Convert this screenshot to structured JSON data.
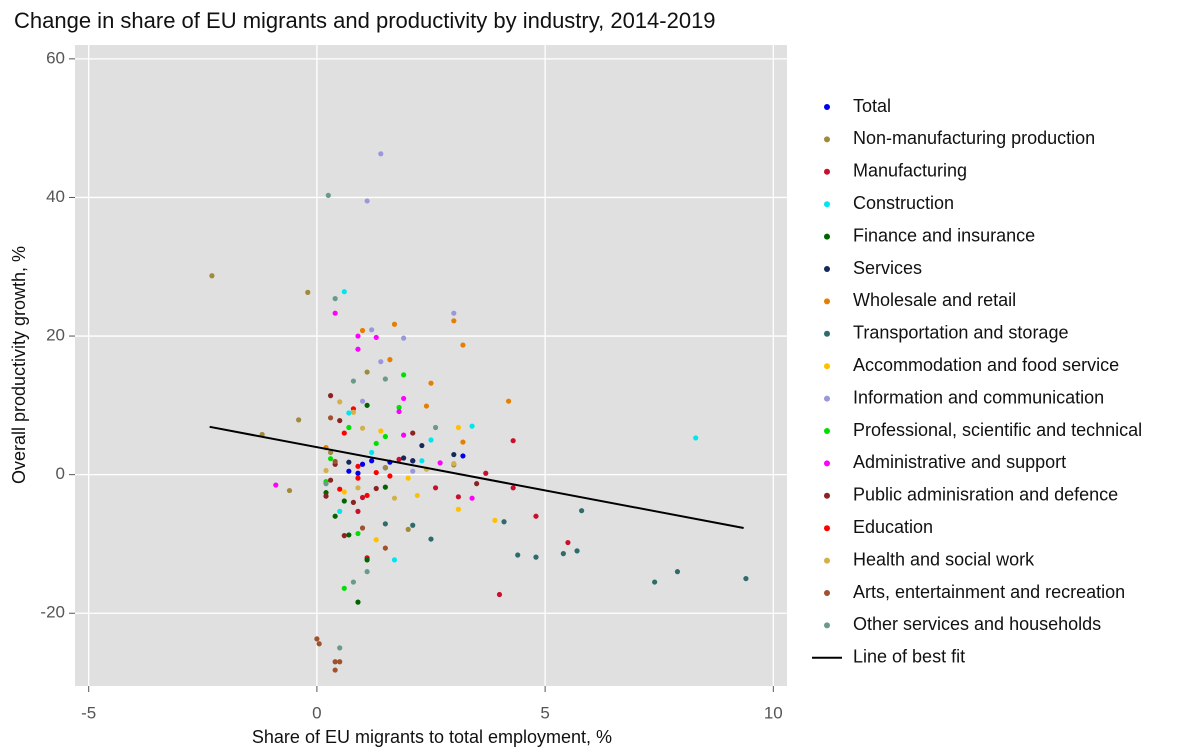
{
  "chart_data": {
    "type": "scatter",
    "title": "Change in share of EU migrants and productivity by industry, 2014-2019",
    "x_label": "Share of EU migrants to total employment, %",
    "y_label": "Overall productivity growth, %",
    "xlim": [
      -5.3,
      10.3
    ],
    "ylim": [
      -30.5,
      62
    ],
    "xticks": [
      -5,
      0,
      5,
      10
    ],
    "yticks": [
      -20,
      0,
      20,
      40,
      60
    ],
    "grid": true,
    "legend": "right",
    "series": [
      {
        "name": "Total",
        "color": "#0000ee",
        "x": [
          1.2,
          1.5,
          2.1,
          0.7,
          3.2,
          1.0,
          1.6,
          0.9
        ],
        "values": [
          2,
          1,
          2,
          0.5,
          2.7,
          1.5,
          1.8,
          0.2
        ]
      },
      {
        "name": "Non-manufacturing production",
        "color": "#a08a3c",
        "x": [
          -2.3,
          -0.2,
          -0.4,
          -1.2,
          -0.6,
          2,
          3,
          1.1,
          0.3,
          1.5
        ],
        "values": [
          28.7,
          26.3,
          7.9,
          5.8,
          -2.3,
          -7.9,
          1.4,
          14.8,
          3.2,
          1
        ]
      },
      {
        "name": "Manufacturing",
        "color": "#c8102e",
        "x": [
          4.3,
          3.7,
          4.3,
          4.8,
          5.5,
          4,
          3.1,
          2.6,
          1,
          1.1,
          1.8,
          0.9
        ],
        "values": [
          4.9,
          0.2,
          -1.9,
          -6,
          -9.8,
          -17.3,
          -3.2,
          -1.9,
          -3.3,
          -12,
          2.2,
          -5.3
        ]
      },
      {
        "name": "Construction",
        "color": "#00e5ee",
        "x": [
          0.6,
          8.3,
          3.4,
          2.5,
          1.7,
          0.7,
          0.5,
          2.3,
          1.2
        ],
        "values": [
          26.4,
          5.3,
          7,
          5,
          -12.3,
          8.9,
          -5.3,
          2,
          3.2
        ]
      },
      {
        "name": "Finance and insurance",
        "color": "#006400",
        "x": [
          0.4,
          0.9,
          1.1,
          1.1,
          0.7,
          0.2,
          1.5,
          0.6
        ],
        "values": [
          -6,
          -18.4,
          -12.3,
          10,
          -8.7,
          -2.6,
          -1.8,
          -3.8
        ]
      },
      {
        "name": "Services",
        "color": "#14285a",
        "x": [
          2.3,
          3,
          1.9,
          0.7,
          2.1
        ],
        "values": [
          4.2,
          2.9,
          2.4,
          1.8,
          2
        ]
      },
      {
        "name": "Wholesale and retail",
        "color": "#e67e00",
        "x": [
          1.7,
          3,
          3.2,
          4.2,
          2.5,
          2.4,
          1.6,
          1,
          3.2,
          0.2
        ],
        "values": [
          21.7,
          22.2,
          18.7,
          10.6,
          13.2,
          9.9,
          16.6,
          20.8,
          4.7,
          3.9
        ]
      },
      {
        "name": "Transportation and storage",
        "color": "#2f6b6b",
        "x": [
          9.4,
          7.9,
          7.4,
          5.7,
          5.4,
          4.8,
          4.4,
          5.8,
          4.1,
          2.5,
          2.1,
          1.5
        ],
        "values": [
          -15,
          -14,
          -15.5,
          -11,
          -11.4,
          -11.9,
          -11.6,
          -5.2,
          -6.8,
          -9.3,
          -7.3,
          -7.1
        ]
      },
      {
        "name": "Accommodation and food service",
        "color": "#ffc000",
        "x": [
          3.9,
          3.1,
          3.1,
          2.2,
          2,
          1.3,
          0.6,
          1.4
        ],
        "values": [
          -6.6,
          -5,
          6.8,
          -3,
          -0.5,
          -9.4,
          -2.5,
          6.3
        ]
      },
      {
        "name": "Information and communication",
        "color": "#9a98dc",
        "x": [
          1.4,
          1.1,
          3,
          1.2,
          1.9,
          1.4,
          1,
          2.1
        ],
        "values": [
          46.3,
          39.5,
          23.3,
          20.9,
          19.7,
          16.3,
          10.6,
          0.5
        ]
      },
      {
        "name": "Professional, scientific and technical",
        "color": "#00e000",
        "x": [
          1.9,
          0.6,
          0.3,
          1.5,
          1.3,
          0.9,
          0.2,
          1.8,
          0.7
        ],
        "values": [
          14.4,
          -16.4,
          2.3,
          5.5,
          4.5,
          -8.5,
          -1,
          9.7,
          6.8
        ]
      },
      {
        "name": "Administrative and support",
        "color": "#ff00ff",
        "x": [
          0.4,
          0.9,
          0.9,
          1.3,
          1.8,
          1.9,
          2.7,
          3.4,
          -0.9,
          1.9
        ],
        "values": [
          23.3,
          18.1,
          20,
          19.8,
          9.1,
          11,
          1.7,
          -3.4,
          -1.5,
          5.7
        ]
      },
      {
        "name": "Public adminisration and defence",
        "color": "#8b2323",
        "x": [
          0.3,
          0.4,
          0.6,
          0.8,
          1.3,
          0.2,
          3.5,
          2.1,
          0.5,
          0.3
        ],
        "values": [
          11.4,
          1.5,
          -8.8,
          -4,
          -2,
          -3.1,
          -1.3,
          6,
          7.8,
          -0.8
        ]
      },
      {
        "name": "Education",
        "color": "#ff0000",
        "x": [
          0.6,
          0.8,
          1.1,
          0.9,
          1.6,
          0.5,
          0.9,
          1.3
        ],
        "values": [
          6,
          9.5,
          -3,
          1.2,
          -0.2,
          -2.1,
          -0.5,
          0.3
        ]
      },
      {
        "name": "Health and social work",
        "color": "#d4b04a",
        "x": [
          0.5,
          0.8,
          1,
          1.7,
          2.4,
          0.2,
          3,
          0.9
        ],
        "values": [
          10.5,
          9,
          6.7,
          -3.4,
          0.8,
          0.6,
          1.6,
          -1.9
        ]
      },
      {
        "name": "Arts, entertainment and recreation",
        "color": "#a0522d",
        "x": [
          0,
          0.05,
          0.4,
          0.5,
          0.4,
          1.5,
          0.3,
          1,
          0.4
        ],
        "values": [
          -23.7,
          -24.4,
          -27,
          -27,
          -28.2,
          -10.6,
          8.2,
          -7.7,
          1.9
        ]
      },
      {
        "name": "Other services and households",
        "color": "#6a9a8a",
        "x": [
          0.25,
          0.4,
          0.5,
          0.8,
          1.1,
          0.8,
          2.6,
          0.2,
          1.5
        ],
        "values": [
          40.3,
          25.4,
          -25,
          -15.5,
          -14,
          13.5,
          6.8,
          -1.3,
          13.8
        ]
      },
      {
        "name": "Line of best fit",
        "type": "line",
        "color": "#000000",
        "x": [
          -2.35,
          9.35
        ],
        "values": [
          6.9,
          -7.7
        ]
      }
    ]
  }
}
